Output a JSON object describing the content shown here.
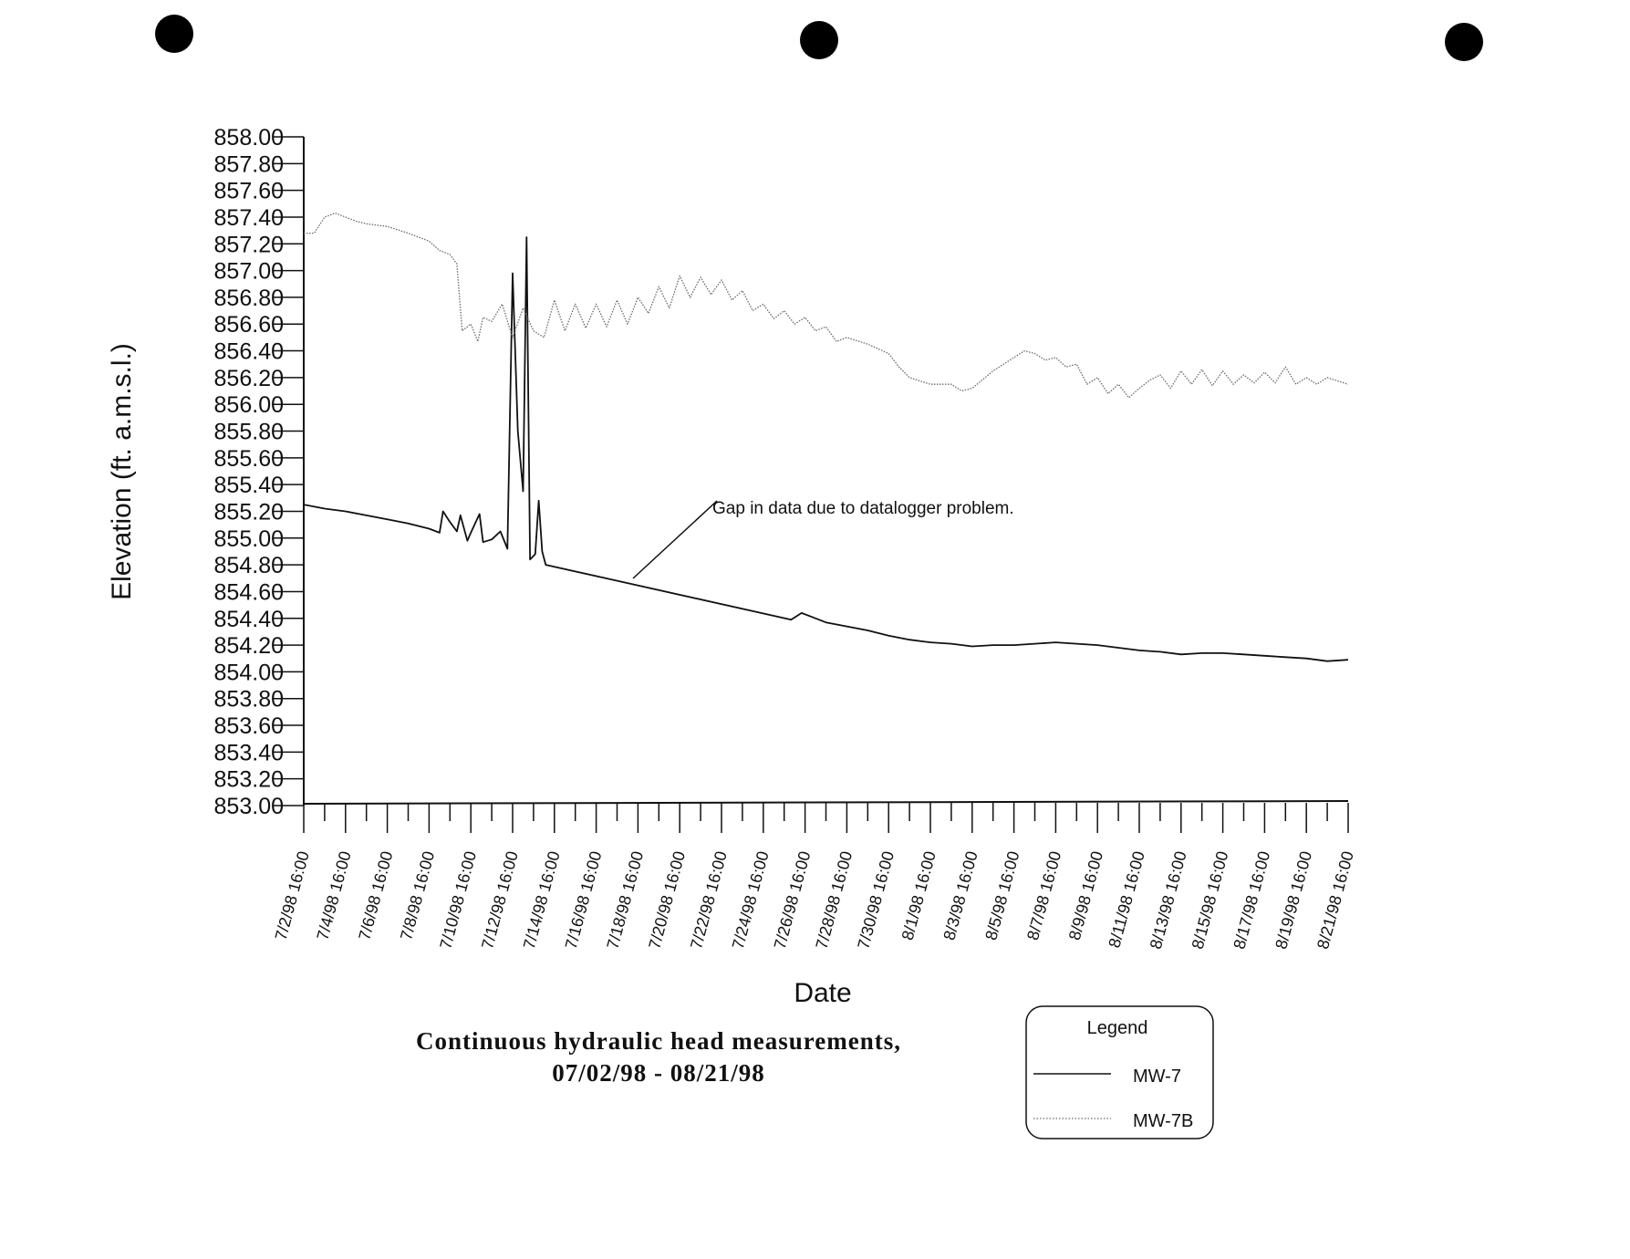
{
  "chart_data": {
    "type": "line",
    "ylabel": "Elevation (ft. a.m.s.l.)",
    "xlabel": "Date",
    "ylim": [
      853.0,
      858.0
    ],
    "y_ticks": [
      "858.00",
      "857.80",
      "857.60",
      "857.40",
      "857.20",
      "857.00",
      "856.80",
      "856.60",
      "856.40",
      "856.20",
      "856.00",
      "855.80",
      "855.60",
      "855.40",
      "855.20",
      "855.00",
      "854.80",
      "854.60",
      "854.40",
      "854.20",
      "854.00",
      "853.80",
      "853.60",
      "853.40",
      "853.20",
      "853.00"
    ],
    "x_tick_labels": [
      "7/2/98 16:00",
      "7/4/98 16:00",
      "7/6/98 16:00",
      "7/8/98 16:00",
      "7/10/98 16:00",
      "7/12/98 16:00",
      "7/14/98 16:00",
      "7/16/98 16:00",
      "7/18/98 16:00",
      "7/20/98 16:00",
      "7/22/98 16:00",
      "7/24/98 16:00",
      "7/26/98 16:00",
      "7/28/98 16:00",
      "7/30/98 16:00",
      "8/1/98 16:00",
      "8/3/98 16:00",
      "8/5/98 16:00",
      "8/7/98 16:00",
      "8/9/98 16:00",
      "8/11/98 16:00",
      "8/13/98 16:00",
      "8/15/98 16:00",
      "8/17/98 16:00",
      "8/19/98 16:00",
      "8/21/98 16:00"
    ],
    "grid": false,
    "legend_position": "bottom-right",
    "series": [
      {
        "name": "MW-7",
        "style": "solid",
        "color": "#111111",
        "points": [
          [
            "7/2/98 16:00",
            855.25
          ],
          [
            "7/3/98 16:00",
            855.22
          ],
          [
            "7/4/98 16:00",
            855.2
          ],
          [
            "7/5/98 16:00",
            855.17
          ],
          [
            "7/6/98 16:00",
            855.14
          ],
          [
            "7/7/98 16:00",
            855.11
          ],
          [
            "7/8/98 16:00",
            855.07
          ],
          [
            "7/9/98 04:00",
            855.04
          ],
          [
            "7/9/98 08:00",
            855.2
          ],
          [
            "7/9/98 16:00",
            855.12
          ],
          [
            "7/10/98 00:00",
            855.05
          ],
          [
            "7/10/98 04:00",
            855.17
          ],
          [
            "7/10/98 12:00",
            854.98
          ],
          [
            "7/10/98 16:00",
            855.04
          ],
          [
            "7/11/98 02:00",
            855.18
          ],
          [
            "7/11/98 06:00",
            854.97
          ],
          [
            "7/11/98 16:00",
            854.99
          ],
          [
            "7/12/98 02:00",
            855.05
          ],
          [
            "7/12/98 10:00",
            854.92
          ],
          [
            "7/12/98 16:00",
            856.98
          ],
          [
            "7/12/98 22:00",
            855.8
          ],
          [
            "7/13/98 04:00",
            855.35
          ],
          [
            "7/13/98 08:00",
            857.25
          ],
          [
            "7/13/98 12:00",
            854.84
          ],
          [
            "7/13/98 18:00",
            854.88
          ],
          [
            "7/13/98 22:00",
            855.28
          ],
          [
            "7/14/98 02:00",
            854.9
          ],
          [
            "7/14/98 06:00",
            854.8
          ],
          [
            "7/26/98 00:00",
            854.39
          ],
          [
            "7/26/98 12:00",
            854.44
          ],
          [
            "7/27/98 16:00",
            854.37
          ],
          [
            "7/28/98 16:00",
            854.34
          ],
          [
            "7/29/98 16:00",
            854.31
          ],
          [
            "7/30/98 16:00",
            854.27
          ],
          [
            "7/31/98 16:00",
            854.24
          ],
          [
            "8/1/98 16:00",
            854.22
          ],
          [
            "8/2/98 16:00",
            854.21
          ],
          [
            "8/3/98 16:00",
            854.19
          ],
          [
            "8/4/98 16:00",
            854.2
          ],
          [
            "8/5/98 16:00",
            854.2
          ],
          [
            "8/6/98 16:00",
            854.21
          ],
          [
            "8/7/98 16:00",
            854.22
          ],
          [
            "8/8/98 16:00",
            854.21
          ],
          [
            "8/9/98 16:00",
            854.2
          ],
          [
            "8/10/98 16:00",
            854.18
          ],
          [
            "8/11/98 16:00",
            854.16
          ],
          [
            "8/12/98 16:00",
            854.15
          ],
          [
            "8/13/98 16:00",
            854.13
          ],
          [
            "8/14/98 16:00",
            854.14
          ],
          [
            "8/15/98 16:00",
            854.14
          ],
          [
            "8/16/98 16:00",
            854.13
          ],
          [
            "8/17/98 16:00",
            854.12
          ],
          [
            "8/18/98 16:00",
            854.11
          ],
          [
            "8/19/98 16:00",
            854.1
          ],
          [
            "8/20/98 16:00",
            854.08
          ],
          [
            "8/21/98 16:00",
            854.09
          ]
        ]
      },
      {
        "name": "MW-7B",
        "style": "dotted",
        "color": "#6a6a6a",
        "points": [
          [
            "7/2/98 16:00",
            857.28
          ],
          [
            "7/3/98 04:00",
            857.28
          ],
          [
            "7/3/98 16:00",
            857.4
          ],
          [
            "7/4/98 04:00",
            857.43
          ],
          [
            "7/4/98 16:00",
            857.4
          ],
          [
            "7/5/98 04:00",
            857.37
          ],
          [
            "7/5/98 16:00",
            857.35
          ],
          [
            "7/6/98 16:00",
            857.33
          ],
          [
            "7/7/98 16:00",
            857.28
          ],
          [
            "7/8/98 16:00",
            857.22
          ],
          [
            "7/9/98 04:00",
            857.15
          ],
          [
            "7/9/98 16:00",
            857.12
          ],
          [
            "7/10/98 00:00",
            857.05
          ],
          [
            "7/10/98 06:00",
            856.55
          ],
          [
            "7/10/98 16:00",
            856.6
          ],
          [
            "7/11/98 00:00",
            856.47
          ],
          [
            "7/11/98 06:00",
            856.65
          ],
          [
            "7/11/98 16:00",
            856.62
          ],
          [
            "7/12/98 04:00",
            856.75
          ],
          [
            "7/12/98 16:00",
            856.5
          ],
          [
            "7/13/98 04:00",
            856.72
          ],
          [
            "7/13/98 16:00",
            856.55
          ],
          [
            "7/14/98 04:00",
            856.5
          ],
          [
            "7/14/98 16:00",
            856.78
          ],
          [
            "7/15/98 04:00",
            856.55
          ],
          [
            "7/15/98 16:00",
            856.75
          ],
          [
            "7/16/98 04:00",
            856.57
          ],
          [
            "7/16/98 16:00",
            856.75
          ],
          [
            "7/17/98 04:00",
            856.58
          ],
          [
            "7/17/98 16:00",
            856.78
          ],
          [
            "7/18/98 04:00",
            856.6
          ],
          [
            "7/18/98 16:00",
            856.8
          ],
          [
            "7/19/98 04:00",
            856.68
          ],
          [
            "7/19/98 16:00",
            856.88
          ],
          [
            "7/20/98 04:00",
            856.72
          ],
          [
            "7/20/98 16:00",
            856.96
          ],
          [
            "7/21/98 04:00",
            856.8
          ],
          [
            "7/21/98 16:00",
            856.95
          ],
          [
            "7/22/98 04:00",
            856.82
          ],
          [
            "7/22/98 16:00",
            856.93
          ],
          [
            "7/23/98 04:00",
            856.78
          ],
          [
            "7/23/98 16:00",
            856.85
          ],
          [
            "7/24/98 04:00",
            856.7
          ],
          [
            "7/24/98 16:00",
            856.75
          ],
          [
            "7/25/98 04:00",
            856.64
          ],
          [
            "7/25/98 16:00",
            856.7
          ],
          [
            "7/26/98 04:00",
            856.6
          ],
          [
            "7/26/98 16:00",
            856.65
          ],
          [
            "7/27/98 04:00",
            856.55
          ],
          [
            "7/27/98 16:00",
            856.58
          ],
          [
            "7/28/98 04:00",
            856.47
          ],
          [
            "7/28/98 16:00",
            856.5
          ],
          [
            "7/29/98 16:00",
            856.45
          ],
          [
            "7/30/98 16:00",
            856.38
          ],
          [
            "7/31/98 04:00",
            856.28
          ],
          [
            "7/31/98 16:00",
            856.2
          ],
          [
            "8/1/98 16:00",
            856.15
          ],
          [
            "8/2/98 16:00",
            856.15
          ],
          [
            "8/3/98 04:00",
            856.1
          ],
          [
            "8/3/98 16:00",
            856.12
          ],
          [
            "8/4/98 16:00",
            856.25
          ],
          [
            "8/5/98 16:00",
            856.35
          ],
          [
            "8/6/98 04:00",
            856.4
          ],
          [
            "8/6/98 16:00",
            856.38
          ],
          [
            "8/7/98 04:00",
            856.33
          ],
          [
            "8/7/98 16:00",
            856.35
          ],
          [
            "8/8/98 04:00",
            856.28
          ],
          [
            "8/8/98 16:00",
            856.3
          ],
          [
            "8/9/98 04:00",
            856.15
          ],
          [
            "8/9/98 16:00",
            856.2
          ],
          [
            "8/10/98 04:00",
            856.08
          ],
          [
            "8/10/98 16:00",
            856.15
          ],
          [
            "8/11/98 04:00",
            856.05
          ],
          [
            "8/11/98 16:00",
            856.12
          ],
          [
            "8/12/98 04:00",
            856.18
          ],
          [
            "8/12/98 16:00",
            856.22
          ],
          [
            "8/13/98 04:00",
            856.12
          ],
          [
            "8/13/98 16:00",
            856.25
          ],
          [
            "8/14/98 04:00",
            856.15
          ],
          [
            "8/14/98 16:00",
            856.26
          ],
          [
            "8/15/98 04:00",
            856.14
          ],
          [
            "8/15/98 16:00",
            856.25
          ],
          [
            "8/16/98 04:00",
            856.15
          ],
          [
            "8/16/98 16:00",
            856.22
          ],
          [
            "8/17/98 04:00",
            856.16
          ],
          [
            "8/17/98 16:00",
            856.24
          ],
          [
            "8/18/98 04:00",
            856.16
          ],
          [
            "8/18/98 16:00",
            856.28
          ],
          [
            "8/19/98 04:00",
            856.15
          ],
          [
            "8/19/98 16:00",
            856.2
          ],
          [
            "8/20/98 04:00",
            856.15
          ],
          [
            "8/20/98 16:00",
            856.2
          ],
          [
            "8/21/98 16:00",
            856.15
          ]
        ]
      }
    ],
    "annotations": [
      {
        "text": "Gap in data due to datalogger problem.",
        "target": [
          "7/20/98 16:00",
          854.67
        ]
      }
    ],
    "caption_line1": "Continuous hydraulic head measurements,",
    "caption_line2": "07/02/98 - 08/21/98"
  },
  "legend": {
    "title": "Legend",
    "items": [
      {
        "label": "MW-7",
        "style": "solid"
      },
      {
        "label": "MW-7B",
        "style": "dotted"
      }
    ]
  },
  "colors": {
    "ink": "#111111",
    "dotted_series": "#6a6a6a",
    "punch_hole": "#000000"
  }
}
